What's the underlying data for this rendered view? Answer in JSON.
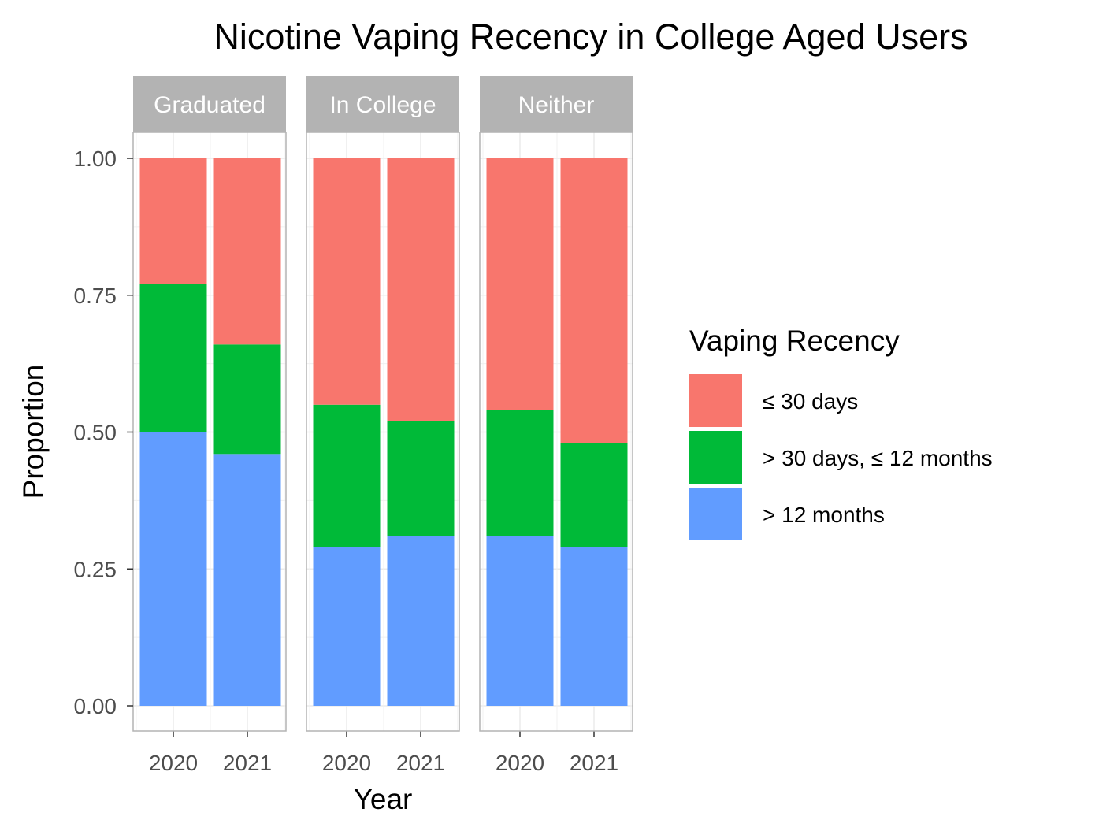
{
  "chart_data": {
    "type": "bar",
    "stacked": true,
    "title": "Nicotine Vaping Recency in College Aged Users",
    "xlabel": "Year",
    "ylabel": "Proportion",
    "ylim": [
      0,
      1
    ],
    "yticks": [
      "0.00",
      "0.25",
      "0.50",
      "0.75",
      "1.00"
    ],
    "categories": [
      "2020",
      "2021"
    ],
    "legend": {
      "title": "Vaping Recency",
      "position": "right"
    },
    "grid": true,
    "series": [
      {
        "name": "≤ 30 days",
        "color": "#F8766D"
      },
      {
        "name": "> 30 days, ≤ 12 months",
        "color": "#00BA38"
      },
      {
        "name": "> 12 months",
        "color": "#619CFF"
      }
    ],
    "facets": [
      {
        "label": "Graduated",
        "values": {
          "≤ 30 days": [
            0.23,
            0.34
          ],
          "> 30 days, ≤ 12 months": [
            0.27,
            0.2
          ],
          "> 12 months": [
            0.5,
            0.46
          ]
        }
      },
      {
        "label": "In College",
        "values": {
          "≤ 30 days": [
            0.45,
            0.48
          ],
          "> 30 days, ≤ 12 months": [
            0.26,
            0.21
          ],
          "> 12 months": [
            0.29,
            0.31
          ]
        }
      },
      {
        "label": "Neither",
        "values": {
          "≤ 30 days": [
            0.46,
            0.52
          ],
          "> 30 days, ≤ 12 months": [
            0.23,
            0.19
          ],
          "> 12 months": [
            0.31,
            0.29
          ]
        }
      }
    ]
  }
}
